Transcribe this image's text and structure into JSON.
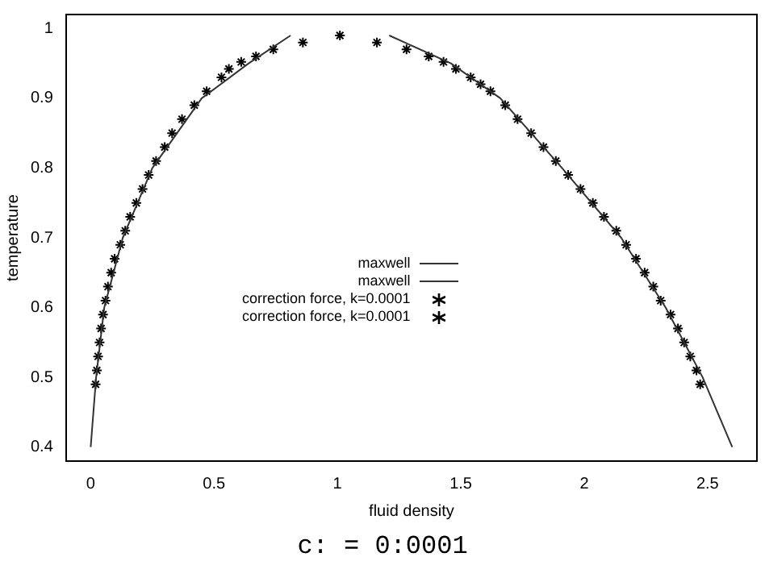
{
  "chart_data": {
    "type": "line",
    "xlabel": "fluid density",
    "ylabel": "temperature",
    "xlim": [
      -0.1,
      2.7
    ],
    "ylim": [
      0.38,
      1.02
    ],
    "xticks": [
      0,
      0.5,
      1,
      1.5,
      2,
      2.5
    ],
    "yticks": [
      0.4,
      0.5,
      0.6,
      0.7,
      0.8,
      0.9,
      1
    ],
    "grid": false,
    "legend": "center",
    "line_style": "solid",
    "annotations": [
      "c:   = 0:0001"
    ],
    "series": [
      {
        "name": "maxwell",
        "type": "line",
        "color": "#333333",
        "marker": "none",
        "x": [
          0.0,
          0.022,
          0.055,
          0.13,
          0.25,
          0.45,
          0.64,
          0.81
        ],
        "values": [
          0.4,
          0.5,
          0.6,
          0.7,
          0.8,
          0.9,
          0.95,
          0.99
        ]
      },
      {
        "name": "maxwell",
        "type": "line",
        "color": "#333333",
        "marker": "none",
        "x": [
          1.21,
          1.46,
          1.66,
          1.91,
          2.15,
          2.33,
          2.48,
          2.6
        ],
        "values": [
          0.99,
          0.95,
          0.9,
          0.8,
          0.7,
          0.6,
          0.5,
          0.4
        ]
      },
      {
        "name": "correction force, k=0.0001",
        "type": "scatter",
        "color": "#000000",
        "marker": "cross",
        "x": [
          0.02,
          0.025,
          0.03,
          0.036,
          0.042,
          0.05,
          0.06,
          0.07,
          0.083,
          0.097,
          0.12,
          0.14,
          0.16,
          0.185,
          0.21,
          0.235,
          0.265,
          0.3,
          0.33,
          0.37,
          0.42,
          0.47,
          0.53,
          0.56,
          0.61,
          0.67,
          0.74,
          0.86,
          1.01
        ],
        "values": [
          0.49,
          0.51,
          0.53,
          0.55,
          0.57,
          0.59,
          0.61,
          0.63,
          0.65,
          0.67,
          0.69,
          0.71,
          0.73,
          0.75,
          0.77,
          0.79,
          0.81,
          0.83,
          0.85,
          0.87,
          0.89,
          0.91,
          0.93,
          0.942,
          0.952,
          0.96,
          0.97,
          0.98,
          0.99
        ]
      },
      {
        "name": "correction force, k=0.0001",
        "type": "scatter",
        "color": "#000000",
        "marker": "cross",
        "x": [
          1.16,
          1.28,
          1.37,
          1.43,
          1.48,
          1.54,
          1.58,
          1.62,
          1.68,
          1.73,
          1.785,
          1.835,
          1.885,
          1.935,
          1.985,
          2.035,
          2.08,
          2.13,
          2.17,
          2.21,
          2.245,
          2.28,
          2.31,
          2.35,
          2.38,
          2.405,
          2.43,
          2.455,
          2.47
        ],
        "values": [
          0.98,
          0.97,
          0.96,
          0.952,
          0.942,
          0.93,
          0.92,
          0.91,
          0.89,
          0.87,
          0.85,
          0.83,
          0.81,
          0.79,
          0.77,
          0.75,
          0.73,
          0.71,
          0.69,
          0.67,
          0.65,
          0.63,
          0.61,
          0.59,
          0.57,
          0.55,
          0.53,
          0.51,
          0.49
        ]
      }
    ]
  }
}
